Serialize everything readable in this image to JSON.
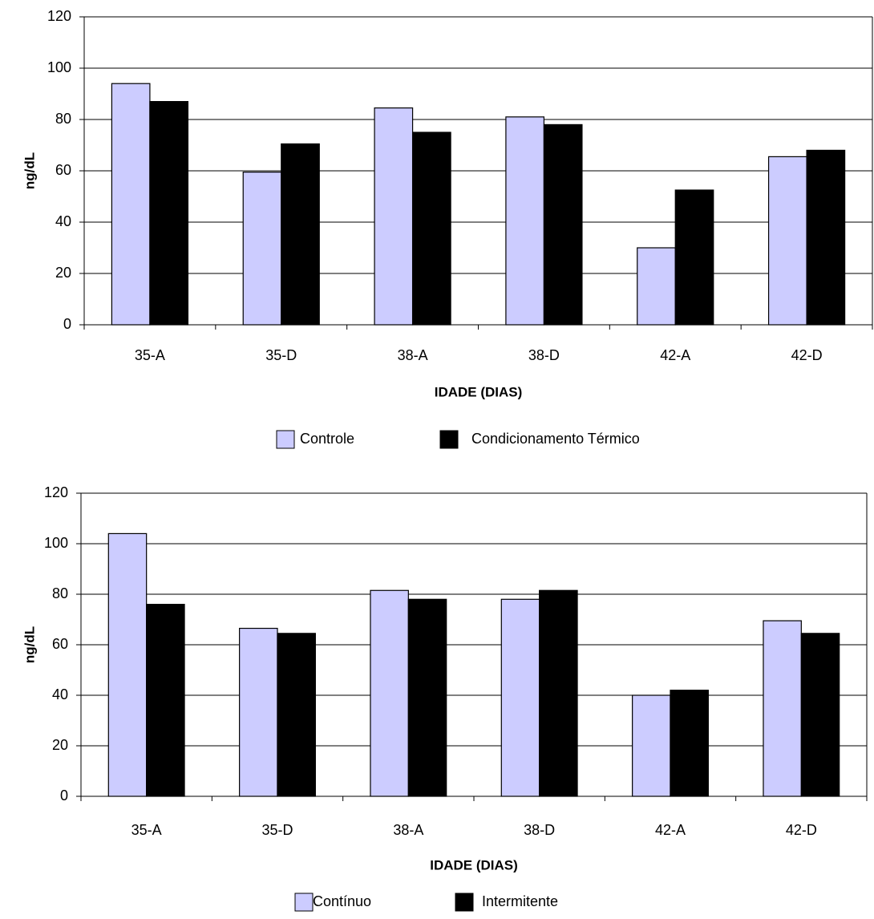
{
  "chart_data": [
    {
      "type": "bar",
      "x_label": "IDADE (DIAS)",
      "y_label": "ng/dL",
      "categories": [
        "35-A",
        "35-D",
        "38-A",
        "38-D",
        "42-A",
        "42-D"
      ],
      "series": [
        {
          "name": "Controle",
          "color": "#ccccff",
          "values": [
            94,
            59.5,
            84.5,
            81,
            30,
            65.5
          ]
        },
        {
          "name": "Condicionamento Térmico",
          "color": "#000000",
          "values": [
            87,
            70.5,
            75,
            78,
            52.5,
            68
          ]
        }
      ],
      "ylim": [
        0,
        120
      ],
      "yticks": [
        0,
        20,
        40,
        60,
        80,
        100,
        120
      ],
      "grid": true
    },
    {
      "type": "bar",
      "x_label": "IDADE (DIAS)",
      "y_label": "ng/dL",
      "categories": [
        "35-A",
        "35-D",
        "38-A",
        "38-D",
        "42-A",
        "42-D"
      ],
      "series": [
        {
          "name": "Contínuo",
          "color": "#ccccff",
          "values": [
            104,
            66.5,
            81.5,
            78,
            40,
            69.5
          ]
        },
        {
          "name": "Intermitente",
          "color": "#000000",
          "values": [
            76,
            64.5,
            78,
            81.5,
            42,
            64.5
          ]
        }
      ],
      "ylim": [
        0,
        120
      ],
      "yticks": [
        0,
        20,
        40,
        60,
        80,
        100,
        120
      ],
      "grid": true
    }
  ]
}
